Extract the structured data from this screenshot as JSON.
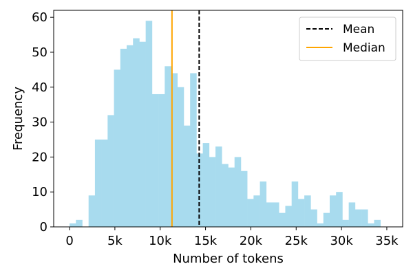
{
  "chart_data": {
    "type": "bar",
    "subtype": "histogram",
    "xlabel": "Number of tokens",
    "ylabel": "Frequency",
    "xlim": [
      -1750,
      36750
    ],
    "ylim": [
      0,
      62
    ],
    "x_ticks": [
      0,
      5000,
      10000,
      15000,
      20000,
      25000,
      30000,
      35000
    ],
    "x_tick_labels": [
      "0",
      "5k",
      "10k",
      "15k",
      "20k",
      "25k",
      "30k",
      "35k"
    ],
    "y_ticks": [
      0,
      10,
      20,
      30,
      40,
      50,
      60
    ],
    "y_tick_labels": [
      "0",
      "10",
      "20",
      "30",
      "40",
      "50",
      "60"
    ],
    "bin_start": 0,
    "bin_width": 700,
    "counts": [
      1,
      2,
      0,
      9,
      25,
      25,
      32,
      45,
      51,
      52,
      54,
      53,
      59,
      38,
      38,
      46,
      44,
      40,
      29,
      44,
      21,
      24,
      20,
      23,
      18,
      17,
      20,
      16,
      8,
      9,
      13,
      7,
      7,
      4,
      6,
      13,
      8,
      9,
      5,
      1,
      4,
      9,
      10,
      2,
      7,
      5,
      5,
      1,
      2
    ],
    "bar_color": "#a8dbee",
    "mean": 14300,
    "median": 11300,
    "mean_line": {
      "color": "#000000",
      "style": "dashed"
    },
    "median_line": {
      "color": "#ffa500",
      "style": "solid"
    },
    "legend": {
      "placement": "top-right",
      "entries": [
        {
          "name": "Mean",
          "color": "#000000",
          "style": "dashed"
        },
        {
          "name": "Median",
          "color": "#ffa500",
          "style": "solid"
        }
      ]
    },
    "grid": false
  }
}
